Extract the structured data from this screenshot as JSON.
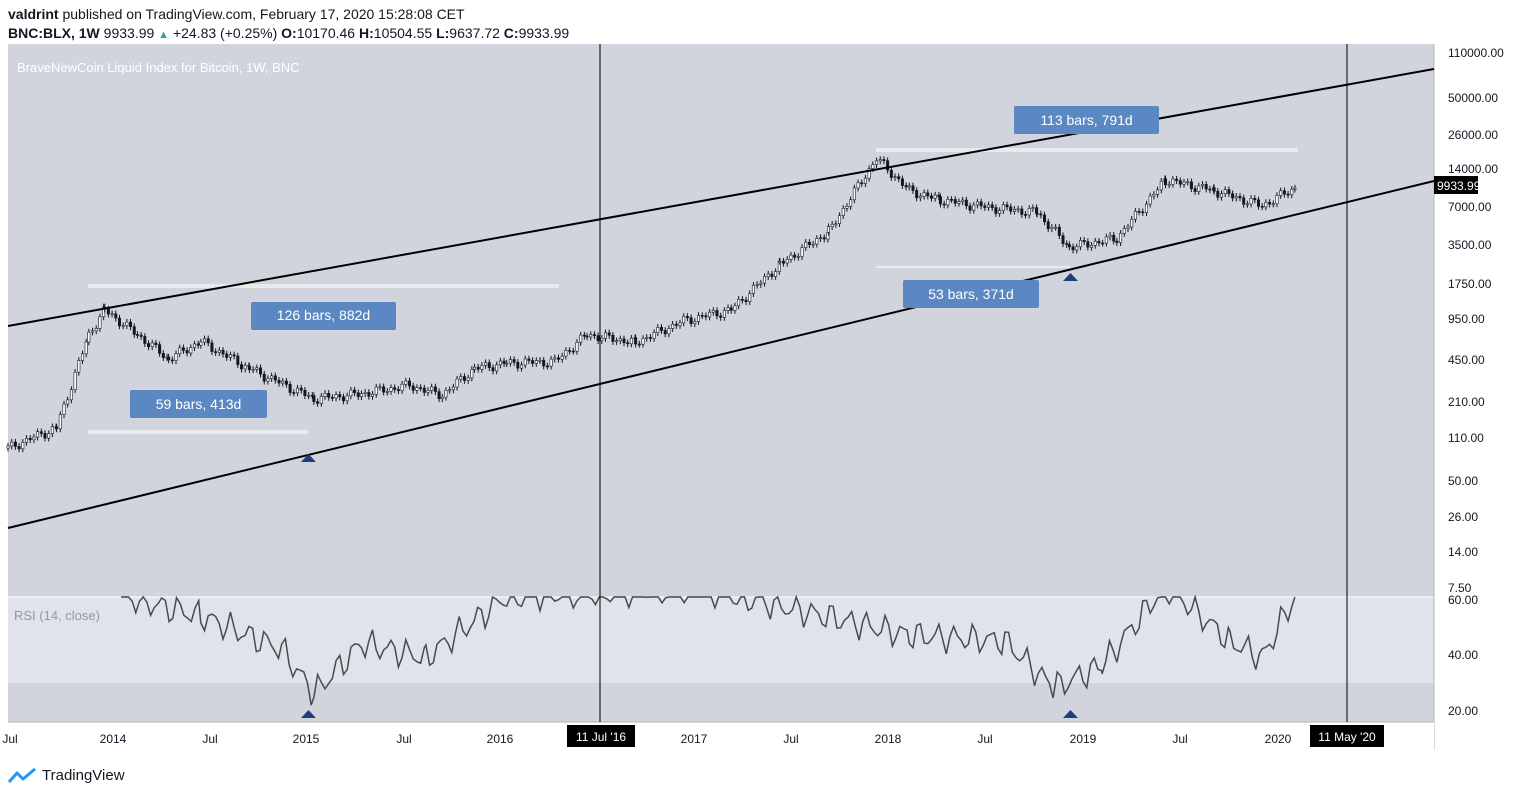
{
  "header": {
    "publisher": "valdrint",
    "published_text": "published on TradingView.com, February 17, 2020 15:28:08 CET",
    "symbol": "BNC:BLX, 1W",
    "last": "9933.99",
    "change": "+24.83 (+0.25%)",
    "o_label": "O:",
    "o_value": "10170.46",
    "h_label": "H:",
    "h_value": "10504.55",
    "l_label": "L:",
    "l_value": "9637.72",
    "c_label": "C:",
    "c_value": "9933.99"
  },
  "chart": {
    "title": "BraveNewCoin Liquid Index for Bitcoin, 1W, BNC",
    "price_label": "9933.99",
    "rsi_label": "RSI (14, close)",
    "annotations": [
      {
        "text": "126 bars, 882d"
      },
      {
        "text": "59 bars, 413d"
      },
      {
        "text": "113 bars, 791d"
      },
      {
        "text": "53 bars, 371d"
      }
    ],
    "vline_labels": [
      "11 Jul '16",
      "11 May '20"
    ]
  },
  "colors": {
    "plot_bg": "#d1d4dc",
    "rsi_band": "#e0e3eb",
    "annotation_box": "#5b87c2",
    "marker": "#1e3f7a",
    "line": "#000000"
  },
  "chart_data": {
    "type": "candlestick",
    "y_scale": "log",
    "y_ticks": [
      "110000.00",
      "50000.00",
      "26000.00",
      "14000.00",
      "7000.00",
      "3500.00",
      "1750.00",
      "950.00",
      "450.00",
      "210.00",
      "110.00",
      "50.00",
      "26.00",
      "14.00",
      "7.50"
    ],
    "x_ticks": [
      "Jul",
      "2014",
      "Jul",
      "2015",
      "Jul",
      "2016",
      "Jul",
      "2017",
      "Jul",
      "2018",
      "Jul",
      "2019",
      "Jul",
      "2020"
    ],
    "rsi_ticks": [
      "60.00",
      "40.00",
      "20.00"
    ],
    "price_series": [
      {
        "date": "2013-06",
        "close": 90
      },
      {
        "date": "2013-09",
        "close": 130
      },
      {
        "date": "2013-11",
        "close": 700
      },
      {
        "date": "2013-12",
        "close": 1100
      },
      {
        "date": "2014-02",
        "close": 700
      },
      {
        "date": "2014-04",
        "close": 450
      },
      {
        "date": "2014-06",
        "close": 620
      },
      {
        "date": "2014-09",
        "close": 380
      },
      {
        "date": "2015-01",
        "close": 220
      },
      {
        "date": "2015-04",
        "close": 240
      },
      {
        "date": "2015-07",
        "close": 280
      },
      {
        "date": "2015-09",
        "close": 235
      },
      {
        "date": "2015-11",
        "close": 380
      },
      {
        "date": "2016-01",
        "close": 420
      },
      {
        "date": "2016-04",
        "close": 430
      },
      {
        "date": "2016-06",
        "close": 700
      },
      {
        "date": "2016-09",
        "close": 610
      },
      {
        "date": "2016-12",
        "close": 900
      },
      {
        "date": "2017-03",
        "close": 1100
      },
      {
        "date": "2017-06",
        "close": 2500
      },
      {
        "date": "2017-09",
        "close": 4500
      },
      {
        "date": "2017-12",
        "close": 17000
      },
      {
        "date": "2018-02",
        "close": 9500
      },
      {
        "date": "2018-04",
        "close": 8000
      },
      {
        "date": "2018-07",
        "close": 7000
      },
      {
        "date": "2018-10",
        "close": 6400
      },
      {
        "date": "2018-12",
        "close": 3400
      },
      {
        "date": "2019-03",
        "close": 4000
      },
      {
        "date": "2019-06",
        "close": 11500
      },
      {
        "date": "2019-09",
        "close": 9500
      },
      {
        "date": "2019-12",
        "close": 7200
      },
      {
        "date": "2020-02",
        "close": 9933.99
      }
    ],
    "rsi_series": [
      {
        "date": "2014-01",
        "value": 62
      },
      {
        "date": "2014-06",
        "value": 55
      },
      {
        "date": "2014-11",
        "value": 43
      },
      {
        "date": "2015-01",
        "value": 27
      },
      {
        "date": "2015-04",
        "value": 45
      },
      {
        "date": "2015-08",
        "value": 40
      },
      {
        "date": "2016-01",
        "value": 62
      },
      {
        "date": "2017-01",
        "value": 65
      },
      {
        "date": "2018-02",
        "value": 48
      },
      {
        "date": "2018-08",
        "value": 46
      },
      {
        "date": "2018-11",
        "value": 29
      },
      {
        "date": "2019-02",
        "value": 37
      },
      {
        "date": "2019-06",
        "value": 66
      },
      {
        "date": "2019-10",
        "value": 46
      },
      {
        "date": "2019-12",
        "value": 40
      },
      {
        "date": "2020-02",
        "value": 62
      }
    ]
  }
}
